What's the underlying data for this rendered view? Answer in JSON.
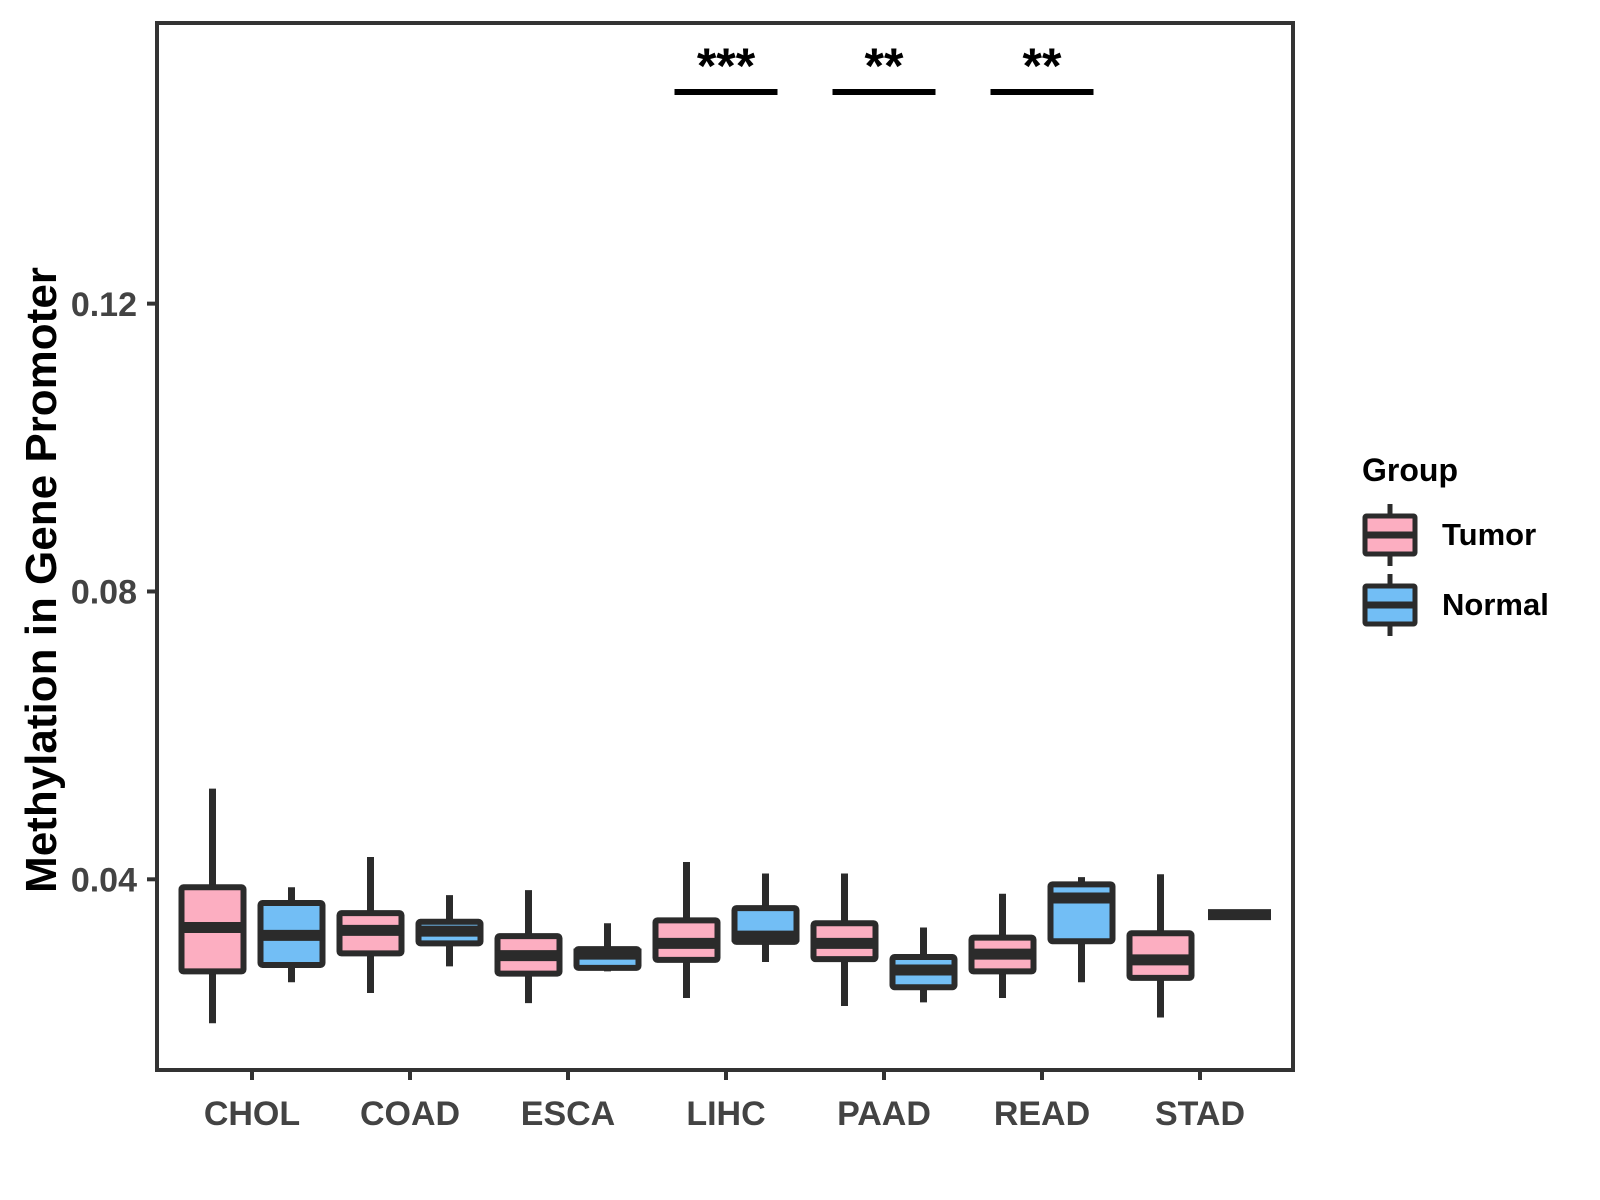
{
  "chart_data": {
    "type": "boxplot",
    "title": "",
    "xlabel": "",
    "ylabel": "Methylation in Gene Promoter",
    "categories": [
      "CHOL",
      "COAD",
      "ESCA",
      "LIHC",
      "PAAD",
      "READ",
      "STAD"
    ],
    "ylim": [
      0.0135,
      0.159
    ],
    "yticks": [
      0.04,
      0.08,
      0.12
    ],
    "ytick_labels": [
      "0.04",
      "0.08",
      "0.12"
    ],
    "grid": false,
    "legend": {
      "title": "Group",
      "position": "right",
      "items": [
        "Tumor",
        "Normal"
      ]
    },
    "series": [
      {
        "name": "Tumor",
        "color": "#FCAEC1",
        "boxes": [
          {
            "category": "CHOL",
            "min": 0.02,
            "q1": 0.0272,
            "median": 0.0333,
            "q3": 0.0389,
            "max": 0.0526
          },
          {
            "category": "COAD",
            "min": 0.0242,
            "q1": 0.0297,
            "median": 0.0329,
            "q3": 0.0353,
            "max": 0.0431
          },
          {
            "category": "ESCA",
            "min": 0.0228,
            "q1": 0.0269,
            "median": 0.0294,
            "q3": 0.0321,
            "max": 0.0385
          },
          {
            "category": "LIHC",
            "min": 0.0235,
            "q1": 0.0288,
            "median": 0.0311,
            "q3": 0.0343,
            "max": 0.0424
          },
          {
            "category": "PAAD",
            "min": 0.0224,
            "q1": 0.0289,
            "median": 0.0311,
            "q3": 0.0339,
            "max": 0.0408
          },
          {
            "category": "READ",
            "min": 0.0235,
            "q1": 0.0272,
            "median": 0.0296,
            "q3": 0.0319,
            "max": 0.038
          },
          {
            "category": "STAD",
            "min": 0.0208,
            "q1": 0.0263,
            "median": 0.0288,
            "q3": 0.0325,
            "max": 0.0407
          }
        ]
      },
      {
        "name": "Normal",
        "color": "#72BEF5",
        "boxes": [
          {
            "category": "CHOL",
            "min": 0.0257,
            "q1": 0.0281,
            "median": 0.0322,
            "q3": 0.0367,
            "max": 0.0389
          },
          {
            "category": "COAD",
            "min": 0.0279,
            "q1": 0.0311,
            "median": 0.0328,
            "q3": 0.0341,
            "max": 0.0378
          },
          {
            "category": "ESCA",
            "min": 0.0272,
            "q1": 0.0277,
            "median": 0.0296,
            "q3": 0.0303,
            "max": 0.0339
          },
          {
            "category": "LIHC",
            "min": 0.0285,
            "q1": 0.0313,
            "median": 0.0321,
            "q3": 0.036,
            "max": 0.0408
          },
          {
            "category": "PAAD",
            "min": 0.0229,
            "q1": 0.025,
            "median": 0.0274,
            "q3": 0.0292,
            "max": 0.0333
          },
          {
            "category": "READ",
            "min": 0.0257,
            "q1": 0.0314,
            "median": 0.0374,
            "q3": 0.0393,
            "max": 0.0403
          },
          {
            "category": "STAD",
            "min": 0.0351,
            "q1": 0.0351,
            "median": 0.0351,
            "q3": 0.0351,
            "max": 0.0351
          }
        ]
      }
    ],
    "significance": [
      {
        "category": "LIHC",
        "label": "***"
      },
      {
        "category": "PAAD",
        "label": "**"
      },
      {
        "category": "READ",
        "label": "**"
      }
    ]
  },
  "colors": {
    "tumor_fill": "#FCAEC1",
    "normal_fill": "#72BEF5",
    "box_stroke": "#2B2B2B",
    "panel_border": "#333333",
    "axis_text": "#434343",
    "title_text": "#000000"
  }
}
